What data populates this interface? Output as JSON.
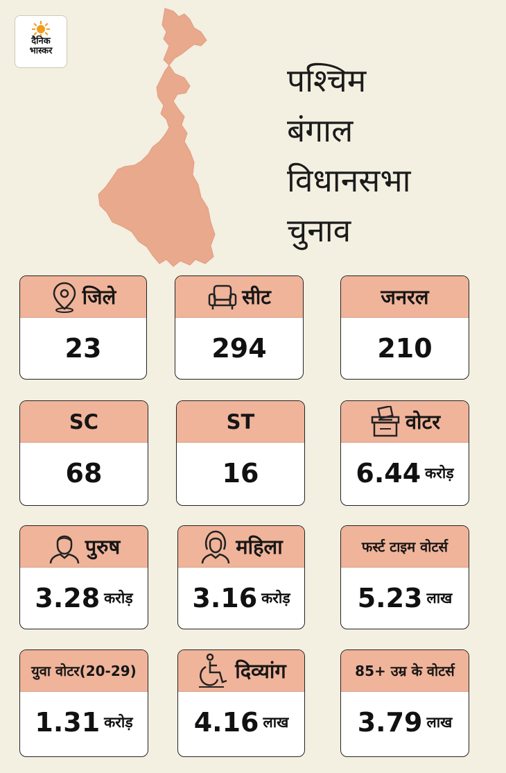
{
  "logo": {
    "line1": "दैनिक",
    "line2": "भास्कर"
  },
  "title": {
    "line1": "पश्चिम",
    "line2": "बंगाल",
    "line3": "विधानसभा",
    "line4": "चुनाव"
  },
  "cards": [
    {
      "label": "जिले",
      "value": "23",
      "unit": "",
      "icon": "location-pin-icon"
    },
    {
      "label": "सीट",
      "value": "294",
      "unit": "",
      "icon": "armchair-icon"
    },
    {
      "label": "जनरल",
      "value": "210",
      "unit": "",
      "icon": ""
    },
    {
      "label": "SC",
      "value": "68",
      "unit": "",
      "icon": ""
    },
    {
      "label": "ST",
      "value": "16",
      "unit": "",
      "icon": ""
    },
    {
      "label": "वोटर",
      "value": "6.44",
      "unit": "करोड़",
      "icon": "ballot-box-icon"
    },
    {
      "label": "पुरुष",
      "value": "3.28",
      "unit": "करोड़",
      "icon": "man-icon"
    },
    {
      "label": "महिला",
      "value": "3.16",
      "unit": "करोड़",
      "icon": "woman-icon"
    },
    {
      "label": "फर्स्ट टाइम वोटर्स",
      "value": "5.23",
      "unit": "लाख",
      "icon": ""
    },
    {
      "label": "युवा वोटर(20-29)",
      "value": "1.31",
      "unit": "करोड़",
      "icon": ""
    },
    {
      "label": "दिव्यांग",
      "value": "4.16",
      "unit": "लाख",
      "icon": "wheelchair-icon"
    },
    {
      "label": "85+ उम्र के वोटर्स",
      "value": "3.79",
      "unit": "लाख",
      "icon": ""
    }
  ],
  "colors": {
    "background": "#f3efe1",
    "card_header": "#f0b49a",
    "map_fill": "#e9a98c"
  }
}
